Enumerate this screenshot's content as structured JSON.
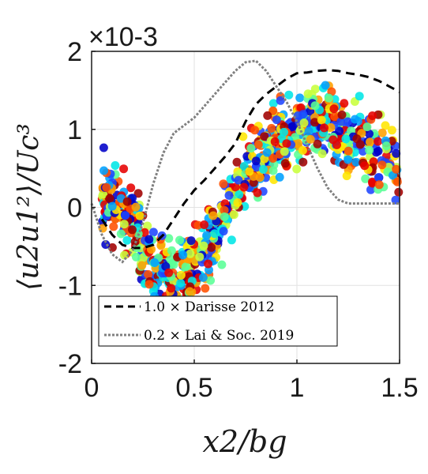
{
  "chart_data": {
    "type": "scatter",
    "title": "",
    "multiplier_label": "×10-3",
    "xlabel": "x2/bg",
    "ylabel": "⟨u2u1²⟩/Uc³",
    "xlim": [
      0,
      1.5
    ],
    "ylim": [
      -2,
      2
    ],
    "x_ticks": [
      0,
      0.5,
      1,
      1.5
    ],
    "x_tick_labels": [
      "0",
      "0.5",
      "1",
      "1.5"
    ],
    "y_ticks": [
      -2,
      -1,
      0,
      1,
      2
    ],
    "y_tick_labels": [
      "-2",
      "-1",
      "0",
      "1",
      "2"
    ],
    "grid": true,
    "legend_position": "bottom-left",
    "scatter_colormap": [
      "#0000c8",
      "#1e46ff",
      "#00a0ff",
      "#00e6e6",
      "#5aff96",
      "#c8ff3c",
      "#ffe600",
      "#ffa000",
      "#ff5000",
      "#e60000",
      "#a00000"
    ],
    "scatter_profile": {
      "x": [
        0.05,
        0.1,
        0.15,
        0.2,
        0.25,
        0.3,
        0.35,
        0.4,
        0.45,
        0.5,
        0.55,
        0.6,
        0.65,
        0.7,
        0.75,
        0.8,
        0.85,
        0.9,
        0.95,
        1.0,
        1.05,
        1.1,
        1.15,
        1.2,
        1.25,
        1.3,
        1.35,
        1.4,
        1.45,
        1.5
      ],
      "y": [
        0.15,
        0.1,
        0.0,
        -0.25,
        -0.55,
        -0.75,
        -0.85,
        -0.9,
        -0.85,
        -0.75,
        -0.55,
        -0.35,
        -0.1,
        0.15,
        0.35,
        0.55,
        0.7,
        0.85,
        0.95,
        1.0,
        1.1,
        1.15,
        1.1,
        1.0,
        0.95,
        0.85,
        0.75,
        0.65,
        0.55,
        0.45
      ],
      "spread": 0.35
    },
    "series": [
      {
        "name": "1.0 × Darisse 2012",
        "style": "dashed",
        "color": "#000000",
        "x": [
          0.05,
          0.1,
          0.15,
          0.2,
          0.25,
          0.3,
          0.35,
          0.4,
          0.45,
          0.5,
          0.55,
          0.6,
          0.65,
          0.7,
          0.75,
          0.8,
          0.85,
          0.9,
          0.95,
          1.0,
          1.05,
          1.1,
          1.15,
          1.2,
          1.25,
          1.3,
          1.35,
          1.4,
          1.45,
          1.5
        ],
        "y": [
          -0.15,
          -0.35,
          -0.48,
          -0.52,
          -0.52,
          -0.48,
          -0.35,
          -0.15,
          0.05,
          0.22,
          0.35,
          0.5,
          0.65,
          0.82,
          1.1,
          1.32,
          1.45,
          1.55,
          1.65,
          1.72,
          1.73,
          1.75,
          1.76,
          1.75,
          1.72,
          1.7,
          1.67,
          1.62,
          1.55,
          1.48
        ]
      },
      {
        "name": "0.2 × Lai & Soc. 2019",
        "style": "dotted",
        "color": "#808080",
        "x": [
          0.0,
          0.05,
          0.1,
          0.15,
          0.2,
          0.25,
          0.3,
          0.35,
          0.4,
          0.45,
          0.5,
          0.55,
          0.6,
          0.65,
          0.7,
          0.75,
          0.8,
          0.85,
          0.9,
          0.95,
          1.0,
          1.05,
          1.1,
          1.15,
          1.2,
          1.25,
          1.3,
          1.35,
          1.4,
          1.45,
          1.5
        ],
        "y": [
          0.05,
          -0.35,
          -0.6,
          -0.7,
          -0.55,
          -0.2,
          0.3,
          0.7,
          0.95,
          1.05,
          1.15,
          1.3,
          1.45,
          1.6,
          1.75,
          1.86,
          1.88,
          1.75,
          1.55,
          1.35,
          1.1,
          0.8,
          0.5,
          0.25,
          0.1,
          0.05,
          0.05,
          0.05,
          0.05,
          0.05,
          0.05
        ]
      }
    ]
  }
}
